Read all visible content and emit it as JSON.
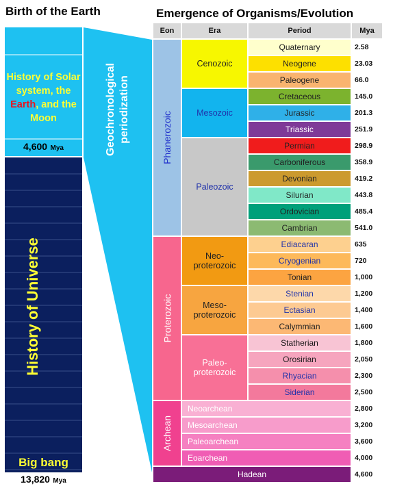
{
  "left": {
    "title": "Birth of the Earth",
    "solar": [
      "History of Solar system, the ",
      "Earth",
      ", and the Moon"
    ],
    "earth_birth": {
      "value": "4,600",
      "unit": "Mya"
    },
    "universe": "History of Universe",
    "big_bang": "Big bang",
    "big_bang_time": {
      "value": "13,820",
      "unit": "Mya"
    }
  },
  "middle": {
    "label": "Geochronological periodization"
  },
  "table": {
    "title": "Emergence of Organisms/Evolution",
    "headers": [
      "Eon",
      "Era",
      "Period",
      "Mya"
    ],
    "eons": [
      {
        "name": "Phanerozoic",
        "color": "#9dc3e6",
        "text_color": "#2233cc",
        "eras": [
          {
            "name": "Cenozoic",
            "color": "#f7f700",
            "text_color": "#222",
            "periods": [
              {
                "name": "Quaternary",
                "mya": "2.58",
                "color": "#ffffcc",
                "text_color": "#222"
              },
              {
                "name": "Neogene",
                "mya": "23.03",
                "color": "#fde000",
                "text_color": "#222"
              },
              {
                "name": "Paleogene",
                "mya": "66.0",
                "color": "#f9b46f",
                "text_color": "#222"
              }
            ]
          },
          {
            "name": "Mesozoic",
            "color": "#12b4ee",
            "text_color": "#2233aa",
            "periods": [
              {
                "name": "Cretaceous",
                "mya": "145.0",
                "color": "#7cb32e",
                "text_color": "#222"
              },
              {
                "name": "Jurassic",
                "mya": "201.3",
                "color": "#2fb0e8",
                "text_color": "#222"
              },
              {
                "name": "Triassic",
                "mya": "251.9",
                "color": "#7f3a98",
                "text_color": "#fff"
              }
            ]
          },
          {
            "name": "Paleozoic",
            "color": "#c8c8c8",
            "text_color": "#2233aa",
            "periods": [
              {
                "name": "Permian",
                "mya": "298.9",
                "color": "#f01c1c",
                "text_color": "#222"
              },
              {
                "name": "Carboniferous",
                "mya": "358.9",
                "color": "#3a9a6c",
                "text_color": "#222"
              },
              {
                "name": "Devonian",
                "mya": "419.2",
                "color": "#cc9a2e",
                "text_color": "#222"
              },
              {
                "name": "Silurian",
                "mya": "443.8",
                "color": "#80e8c8",
                "text_color": "#222"
              },
              {
                "name": "Ordovician",
                "mya": "485.4",
                "color": "#00a07a",
                "text_color": "#222"
              },
              {
                "name": "Cambrian",
                "mya": "541.0",
                "color": "#8cba72",
                "text_color": "#222"
              }
            ]
          }
        ]
      },
      {
        "name": "Proterozoic",
        "color": "#f7668e",
        "text_color": "#fff",
        "eras": [
          {
            "name": "Neo-proterozoic",
            "color": "#f29a12",
            "text_color": "#222",
            "periods": [
              {
                "name": "Ediacaran",
                "mya": "635",
                "color": "#fdd08f",
                "text_color": "#2233aa"
              },
              {
                "name": "Cryogenian",
                "mya": "720",
                "color": "#fdb95a",
                "text_color": "#2233aa"
              },
              {
                "name": "Tonian",
                "mya": "1,000",
                "color": "#fca441",
                "text_color": "#222"
              }
            ]
          },
          {
            "name": "Meso-proterozoic",
            "color": "#f7a540",
            "text_color": "#222",
            "periods": [
              {
                "name": "Stenian",
                "mya": "1,200",
                "color": "#fdd8aa",
                "text_color": "#2233aa"
              },
              {
                "name": "Ectasian",
                "mya": "1,400",
                "color": "#fdca92",
                "text_color": "#2233aa"
              },
              {
                "name": "Calymmian",
                "mya": "1,600",
                "color": "#fcb874",
                "text_color": "#222"
              }
            ]
          },
          {
            "name": "Paleo-proterozoic",
            "color": "#f87096",
            "text_color": "#fff",
            "periods": [
              {
                "name": "Statherian",
                "mya": "1,800",
                "color": "#f8c4d4",
                "text_color": "#111"
              },
              {
                "name": "Orosirian",
                "mya": "2,050",
                "color": "#f6a5be",
                "text_color": "#222"
              },
              {
                "name": "Rhyacian",
                "mya": "2,300",
                "color": "#f58fac",
                "text_color": "#2233aa"
              },
              {
                "name": "Siderian",
                "mya": "2,500",
                "color": "#f3799c",
                "text_color": "#2233aa"
              }
            ]
          }
        ]
      },
      {
        "name": "Archean",
        "color": "#f0418f",
        "text_color": "#fff",
        "eras": [
          {
            "name": "Neoarchean",
            "mya": "2,800",
            "color": "#f9b0d3",
            "text_color": "#fff"
          },
          {
            "name": "Mesoarchean",
            "mya": "3,200",
            "color": "#f79ccb",
            "text_color": "#fff"
          },
          {
            "name": "Paleoarchean",
            "mya": "3,600",
            "color": "#f580c1",
            "text_color": "#fff"
          },
          {
            "name": "Eoarchean",
            "mya": "4,000",
            "color": "#f05db4",
            "text_color": "#fff"
          }
        ]
      },
      {
        "name": "Hadean",
        "mya": "4,600",
        "color": "#7b1c79",
        "text_color": "#fff"
      }
    ]
  }
}
